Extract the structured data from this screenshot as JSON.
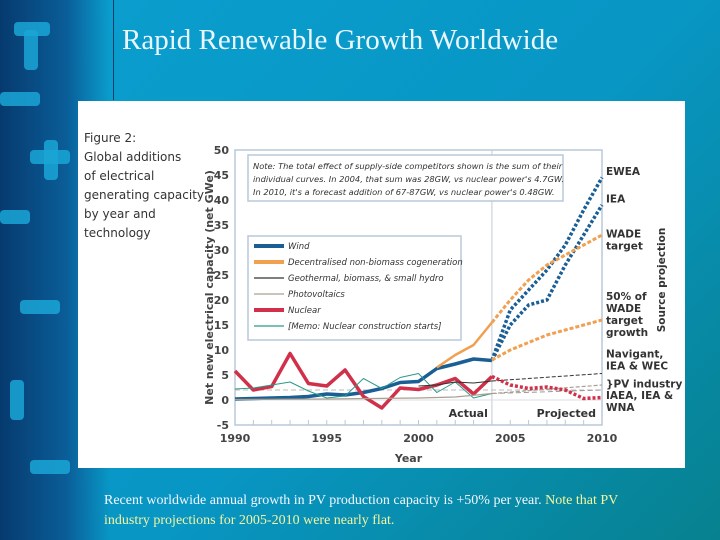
{
  "slide": {
    "title": "Rapid Renewable Growth Worldwide",
    "caption_part1": "Recent worldwide annual growth in PV production capacity is +50% per year.  ",
    "caption_part2": "Note that PV industry projections for 2005-2010 were nearly flat."
  },
  "chart_data": {
    "type": "line",
    "figure_caption": [
      "Figure 2:",
      "Global additions",
      "of electrical",
      "generating capacity",
      "by year and",
      "technology"
    ],
    "xlabel": "Year",
    "ylabel": "Net new electrical capacity (net GWe)",
    "xlim": [
      1990,
      2010
    ],
    "ylim": [
      -5,
      50
    ],
    "x_ticks": [
      "1990",
      "1995",
      "2000",
      "2005",
      "2010"
    ],
    "y_ticks": [
      "50",
      "45",
      "40",
      "35",
      "30",
      "25",
      "20",
      "15",
      "10",
      "5",
      "0",
      "-5"
    ],
    "note": [
      "Note: The total effect of supply-side competitors shown is the sum of their",
      "individual curves. In 2004, that sum was 28GW, vs nuclear power's 4.7GW.",
      "In 2010, it's a forecast addition of 67-87GW, vs nuclear power's 0.48GW."
    ],
    "region_labels": {
      "actual": "Actual",
      "projected": "Projected"
    },
    "side_label": "Source projection",
    "legend": [
      {
        "name": "Wind",
        "color": "#1a5e96"
      },
      {
        "name": "Decentralised non-biomass cogeneration",
        "color": "#f0a050"
      },
      {
        "name": "Geothermal, biomass, & small hydro",
        "color": "#333333"
      },
      {
        "name": "Photovoltaics",
        "color": "#aaa090"
      },
      {
        "name": "Nuclear",
        "color": "#d0304a"
      },
      {
        "name": "[Memo: Nuclear construction starts]",
        "color": "#2a9a8a"
      }
    ],
    "series": [
      {
        "name": "Wind",
        "style": "solid",
        "x": [
          1990,
          1991,
          1992,
          1993,
          1994,
          1995,
          1996,
          1997,
          1998,
          1999,
          2000,
          2001,
          2002,
          2003,
          2004
        ],
        "y": [
          0.2,
          0.3,
          0.4,
          0.5,
          0.7,
          1.2,
          1.0,
          1.5,
          2.3,
          3.5,
          3.7,
          6.3,
          7.2,
          8.2,
          7.9
        ]
      },
      {
        "name": "Decentralised non-biomass cogeneration",
        "style": "solid",
        "x": [
          2001,
          2002,
          2003,
          2004
        ],
        "y": [
          6.5,
          9,
          11,
          15.5
        ]
      },
      {
        "name": "Nuclear",
        "style": "solid",
        "x": [
          1990,
          1991,
          1992,
          1993,
          1994,
          1995,
          1996,
          1997,
          1998,
          1999,
          2000,
          2001,
          2002,
          2003,
          2004
        ],
        "y": [
          5.8,
          2.0,
          2.7,
          9.3,
          3.3,
          2.8,
          6.0,
          0.7,
          -1.6,
          2.4,
          2.1,
          3.0,
          4.3,
          1.2,
          4.7
        ]
      },
      {
        "name": "[Memo: Nuclear construction starts]",
        "style": "solid",
        "x": [
          1990,
          1991,
          1992,
          1993,
          1994,
          1995,
          1996,
          1997,
          1998,
          1999,
          2000,
          2001,
          2002,
          2003,
          2004
        ],
        "y": [
          2.2,
          2.4,
          3.0,
          3.6,
          1.8,
          0.4,
          0.8,
          4.3,
          2.3,
          4.5,
          5.3,
          1.5,
          3.6,
          0.4,
          1.3
        ]
      },
      {
        "name": "Geothermal, biomass, & small hydro",
        "style": "solid",
        "x": [
          2000,
          2001,
          2002,
          2003,
          2004
        ],
        "y": [
          2.8,
          3.0,
          3.6,
          3.4,
          3.8
        ]
      },
      {
        "name": "Photovoltaics",
        "style": "solid",
        "x": [
          1990,
          1995,
          2000,
          2002,
          2004
        ],
        "y": [
          0.1,
          0.2,
          0.4,
          0.6,
          1.3
        ]
      },
      {
        "name": "EWEA",
        "style": "dashed",
        "x": [
          2004,
          2005,
          2006,
          2007,
          2008,
          2009,
          2010
        ],
        "y": [
          7.9,
          18,
          22,
          26,
          31,
          38,
          44.5
        ]
      },
      {
        "name": "IEA",
        "style": "dashed",
        "x": [
          2004,
          2005,
          2006,
          2007,
          2008,
          2009,
          2010
        ],
        "y": [
          7.9,
          15,
          19,
          20,
          27,
          33,
          39
        ]
      },
      {
        "name": "WADE target",
        "style": "dashed",
        "x": [
          2004,
          2005,
          2006,
          2007,
          2008,
          2009,
          2010
        ],
        "y": [
          15.5,
          20,
          24,
          27,
          29,
          31,
          33
        ]
      },
      {
        "name": "50% of WADE target growth",
        "style": "dashed",
        "x": [
          2004,
          2005,
          2006,
          2007,
          2008,
          2009,
          2010
        ],
        "y": [
          8,
          10,
          11.5,
          13,
          14,
          15,
          16
        ]
      },
      {
        "name": "Navigant, IEA & WEC",
        "style": "dashed",
        "x": [
          2004,
          2010
        ],
        "y": [
          3.8,
          5.3
        ]
      },
      {
        "name": "PV industry",
        "style": "dashed",
        "x": [
          2004,
          2010
        ],
        "y": [
          1.3,
          3.0
        ]
      },
      {
        "name": "IAEA, IEA & WNA",
        "style": "dashed",
        "x": [
          2004,
          2005,
          2006,
          2007,
          2008,
          2009,
          2010
        ],
        "y": [
          4.7,
          3.0,
          2.3,
          2.6,
          2.0,
          0.3,
          0.5
        ]
      }
    ],
    "source_labels": [
      "EWEA",
      "IEA",
      "WADE target",
      "50% of WADE target growth",
      "Navigant, IEA & WEC",
      "PV industry",
      "IAEA, IEA & WNA"
    ]
  }
}
